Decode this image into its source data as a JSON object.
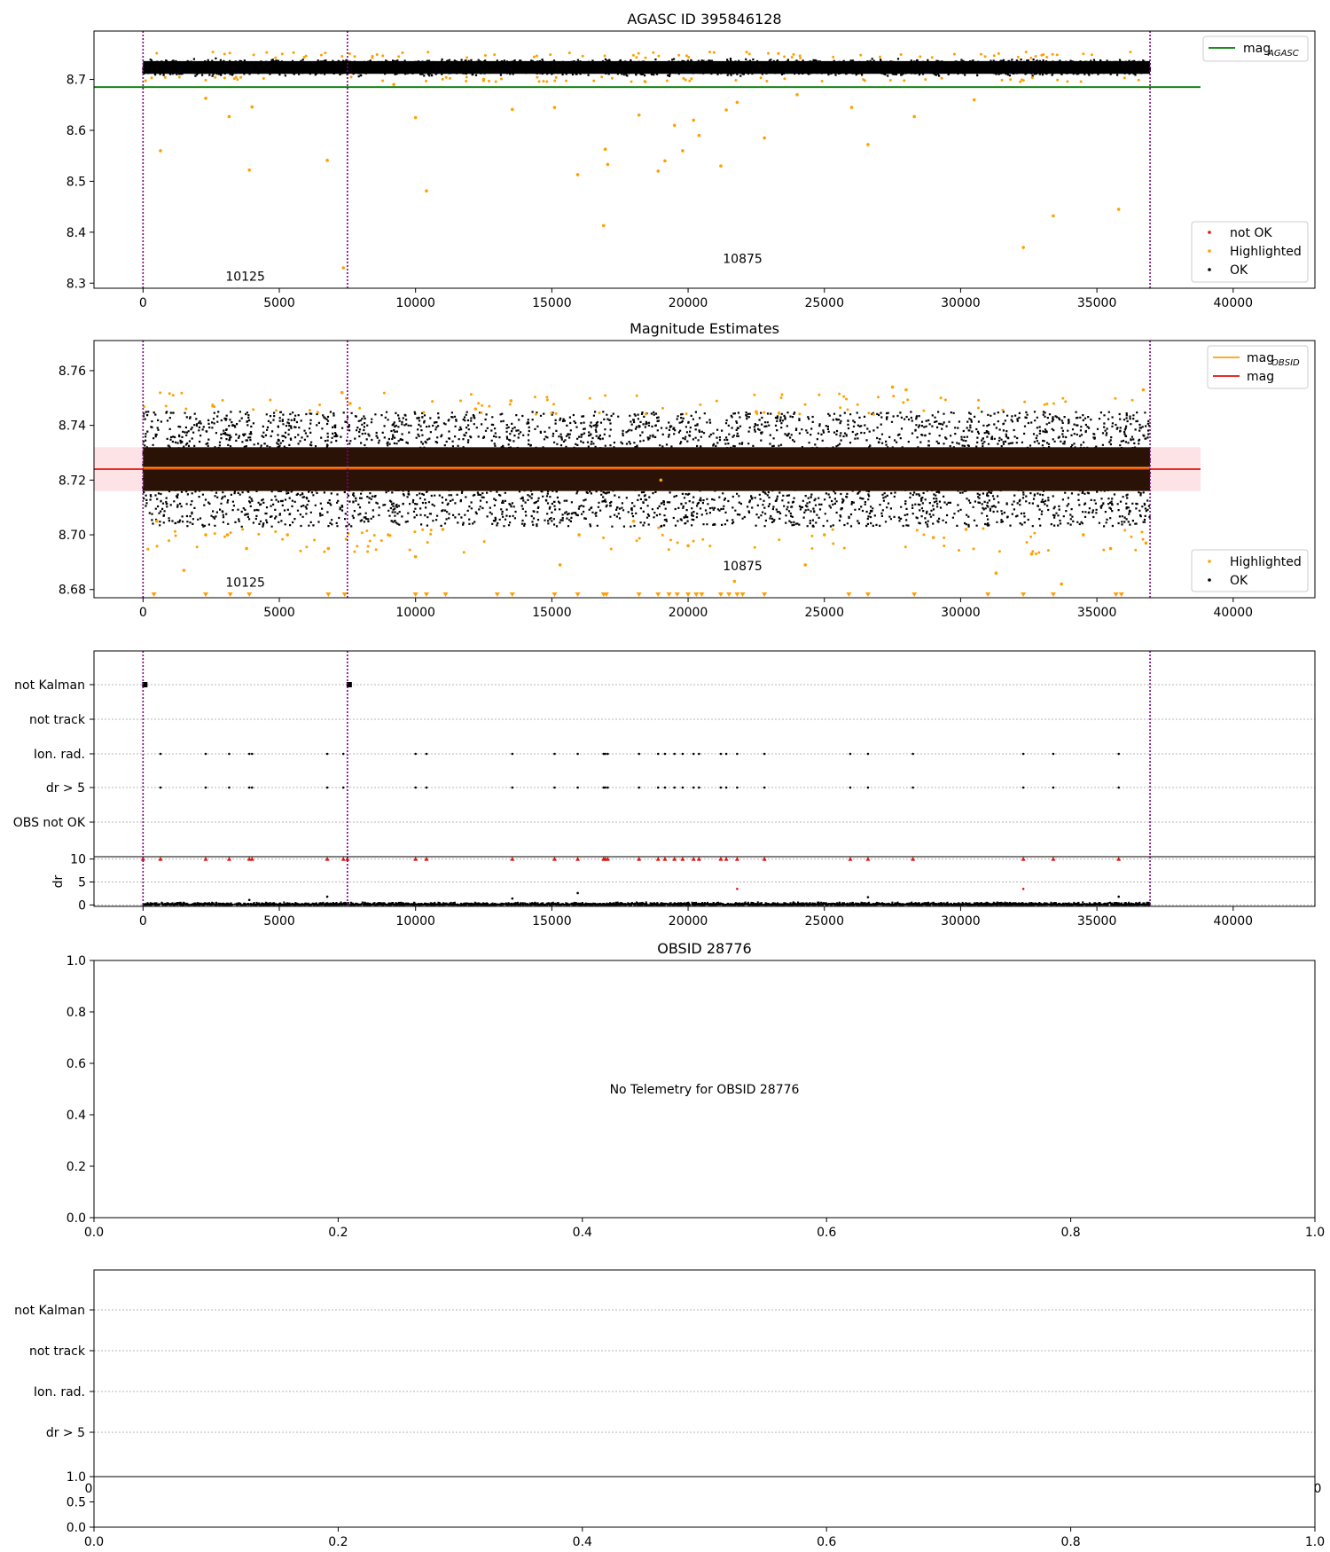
{
  "colors": {
    "agasc_line": "#007a00",
    "mag_line": "#e0110b",
    "obsid_line": "#ff9f0a",
    "band_fill": "#fde2e6",
    "highlighted": "#ffa000",
    "ok": "#000000",
    "not_ok": "#e0110b",
    "obs_boundary": "#7f007f",
    "grid": "#b5b5b5"
  },
  "chart_data": [
    {
      "id": "agasc",
      "type": "scatter",
      "title": "AGASC ID 395846128",
      "xlim": [
        -1800,
        43000
      ],
      "ylim": [
        8.29,
        8.795
      ],
      "xticks": [
        0,
        5000,
        10000,
        15000,
        20000,
        25000,
        30000,
        35000,
        40000
      ],
      "yticks": [
        8.3,
        8.4,
        8.5,
        8.6,
        8.7
      ],
      "ytick_labels": [
        "8.3",
        "8.4",
        "8.5",
        "8.6",
        "8.7"
      ],
      "mag_agasc": 8.685,
      "line_extent": [
        -1800,
        38800
      ],
      "obs_boundaries": [
        0,
        7500,
        36950
      ],
      "annotations": [
        {
          "text": "10125",
          "x": 3750,
          "y": 8.305
        },
        {
          "text": "10875",
          "x": 22000,
          "y": 8.34
        }
      ],
      "ok_band": {
        "x0": 0,
        "x1": 36950,
        "ylo": 8.705,
        "yhi": 8.742
      },
      "highlighted": [
        [
          640,
          8.56
        ],
        [
          2300,
          8.663
        ],
        [
          3160,
          8.627
        ],
        [
          3900,
          8.522
        ],
        [
          4000,
          8.646
        ],
        [
          6760,
          8.541
        ],
        [
          7350,
          8.33
        ],
        [
          10000,
          8.625
        ],
        [
          10400,
          8.481
        ],
        [
          13550,
          8.641
        ],
        [
          15100,
          8.645
        ],
        [
          15950,
          8.513
        ],
        [
          16900,
          8.413
        ],
        [
          16960,
          8.563
        ],
        [
          17050,
          8.533
        ],
        [
          18200,
          8.63
        ],
        [
          18900,
          8.52
        ],
        [
          19150,
          8.54
        ],
        [
          19500,
          8.61
        ],
        [
          19800,
          8.56
        ],
        [
          20200,
          8.62
        ],
        [
          20400,
          8.59
        ],
        [
          21200,
          8.53
        ],
        [
          21400,
          8.64
        ],
        [
          21800,
          8.655
        ],
        [
          22800,
          8.585
        ],
        [
          26600,
          8.572
        ],
        [
          28300,
          8.627
        ],
        [
          32300,
          8.37
        ],
        [
          33400,
          8.432
        ],
        [
          35800,
          8.445
        ],
        [
          24000,
          8.67
        ],
        [
          26000,
          8.645
        ],
        [
          9200,
          8.69
        ],
        [
          12500,
          8.7
        ],
        [
          30500,
          8.66
        ]
      ],
      "legend": [
        {
          "label": "mag",
          "sub": "AGASC",
          "kind": "line"
        }
      ],
      "legend2": [
        {
          "label": "not OK",
          "kind": "dot",
          "color_key": "not_ok"
        },
        {
          "label": "Highlighted",
          "kind": "dot",
          "color_key": "highlighted"
        },
        {
          "label": "OK",
          "kind": "dot",
          "color_key": "ok"
        }
      ]
    },
    {
      "id": "estimates",
      "type": "scatter",
      "title": "Magnitude Estimates",
      "xlim": [
        -1800,
        43000
      ],
      "ylim": [
        8.677,
        8.771
      ],
      "xticks": [
        0,
        5000,
        10000,
        15000,
        20000,
        25000,
        30000,
        35000,
        40000
      ],
      "yticks": [
        8.68,
        8.7,
        8.72,
        8.74,
        8.76
      ],
      "ytick_labels": [
        "8.68",
        "8.70",
        "8.72",
        "8.74",
        "8.76"
      ],
      "mag": 8.724,
      "mag_obsid": 8.7245,
      "band": [
        8.716,
        8.732
      ],
      "line_extent": [
        -1800,
        38800
      ],
      "obs_boundaries": [
        0,
        7500,
        36950
      ],
      "annotations": [
        {
          "text": "10125",
          "x": 3750,
          "y": 8.681
        },
        {
          "text": "10875",
          "x": 22000,
          "y": 8.687
        }
      ],
      "ok_band": {
        "x0": 0,
        "x1": 36950,
        "ylo": 8.716,
        "yhi": 8.732
      },
      "ok_spread": {
        "ylo": 8.703,
        "yhi": 8.745
      },
      "highlighted": [
        [
          500,
          8.705
        ],
        [
          1500,
          8.687
        ],
        [
          2300,
          8.7
        ],
        [
          3100,
          8.7
        ],
        [
          3800,
          8.695
        ],
        [
          5300,
          8.7
        ],
        [
          6800,
          8.695
        ],
        [
          7300,
          8.752
        ],
        [
          7600,
          8.748
        ],
        [
          9000,
          8.7
        ],
        [
          10000,
          8.692
        ],
        [
          11000,
          8.702
        ],
        [
          12200,
          8.746
        ],
        [
          13500,
          8.749
        ],
        [
          15300,
          8.689
        ],
        [
          16000,
          8.7
        ],
        [
          18000,
          8.705
        ],
        [
          19000,
          8.72
        ],
        [
          20000,
          8.696
        ],
        [
          21700,
          8.683
        ],
        [
          22500,
          8.745
        ],
        [
          24300,
          8.689
        ],
        [
          25000,
          8.7
        ],
        [
          27500,
          8.754
        ],
        [
          28000,
          8.753
        ],
        [
          29000,
          8.699
        ],
        [
          30200,
          8.702
        ],
        [
          31300,
          8.686
        ],
        [
          32600,
          8.693
        ],
        [
          33700,
          8.682
        ],
        [
          34500,
          8.7
        ],
        [
          35500,
          8.695
        ],
        [
          36700,
          8.753
        ],
        [
          36800,
          8.697
        ]
      ],
      "low_markers": [
        400,
        2300,
        3200,
        3900,
        6800,
        7400,
        10000,
        10400,
        11100,
        13000,
        13550,
        15100,
        15950,
        16900,
        17000,
        18200,
        18900,
        19300,
        19600,
        20000,
        20300,
        20500,
        21200,
        21500,
        21800,
        22000,
        22800,
        25900,
        26600,
        28300,
        31000,
        32300,
        33400,
        35700,
        35900
      ],
      "legend": [
        {
          "label": "mag",
          "sub": "OBSID",
          "kind": "line",
          "color_key": "obsid_line"
        },
        {
          "label": "mag",
          "sub": "",
          "kind": "line",
          "color_key": "mag_line"
        }
      ],
      "legend2": [
        {
          "label": "Highlighted",
          "kind": "dot",
          "color_key": "highlighted"
        },
        {
          "label": "OK",
          "kind": "dot",
          "color_key": "ok"
        }
      ]
    },
    {
      "id": "flags",
      "type": "scatter",
      "title": "",
      "xlim": [
        -1800,
        43000
      ],
      "categories": [
        "not Kalman",
        "not track",
        "Ion. rad.",
        "dr > 5",
        "OBS not OK"
      ],
      "obs_boundaries": [
        0,
        7500,
        36950
      ],
      "not_kalman_x": [
        0,
        7500
      ],
      "flag_x": [
        640,
        2300,
        3160,
        3900,
        4000,
        6760,
        7350,
        10000,
        10400,
        13550,
        15100,
        15950,
        16900,
        16960,
        17050,
        18200,
        18900,
        19150,
        19500,
        19800,
        20200,
        20400,
        21200,
        21400,
        21800,
        22800,
        25950,
        26600,
        28250,
        32300,
        33400,
        35800
      ]
    },
    {
      "id": "dr",
      "type": "scatter",
      "title": "",
      "xlim": [
        -1800,
        43000
      ],
      "ylim": [
        -0.3,
        10.5
      ],
      "ylabel": "dr",
      "xticks": [
        0,
        5000,
        10000,
        15000,
        20000,
        25000,
        30000,
        35000,
        40000
      ],
      "yticks": [
        0,
        5,
        10
      ],
      "ytick_labels": [
        "0",
        "5",
        "10"
      ],
      "obs_boundaries": [
        0,
        7500,
        36950
      ],
      "red_at_ten": [
        0,
        640,
        2300,
        3160,
        3900,
        4000,
        6760,
        7350,
        7500,
        10000,
        10400,
        13550,
        15100,
        15950,
        16900,
        16960,
        17050,
        18200,
        18900,
        19150,
        19500,
        19800,
        20200,
        20400,
        21200,
        21400,
        21800,
        22800,
        25950,
        26600,
        28250,
        32300,
        33400,
        35800
      ],
      "outliers": [
        [
          15950,
          2.6
        ],
        [
          21800,
          3.5
        ],
        [
          32300,
          3.5
        ],
        [
          6760,
          1.8
        ],
        [
          13550,
          1.4
        ],
        [
          26600,
          1.7
        ],
        [
          35800,
          1.8
        ],
        [
          3900,
          1.1
        ]
      ]
    },
    {
      "id": "obsid",
      "type": "scatter",
      "title": "OBSID 28776",
      "xlim": [
        0,
        1
      ],
      "ylim": [
        0,
        1
      ],
      "xticks": [
        0,
        0.2,
        0.4,
        0.6,
        0.8,
        1
      ],
      "xtick_labels": [
        "0.0",
        "0.2",
        "0.4",
        "0.6",
        "0.8",
        "1.0"
      ],
      "yticks": [
        0,
        0.2,
        0.4,
        0.6,
        0.8,
        1
      ],
      "ytick_labels": [
        "0.0",
        "0.2",
        "0.4",
        "0.6",
        "0.8",
        "1.0"
      ],
      "message": "No Telemetry for OBSID 28776"
    },
    {
      "id": "flags2",
      "type": "scatter",
      "title": "",
      "categories": [
        "not Kalman",
        "not track",
        "Ion. rad.",
        "dr > 5"
      ],
      "clipped_xtick_labels": [
        "0",
        "0"
      ]
    },
    {
      "id": "dr2",
      "type": "scatter",
      "title": "",
      "xlim": [
        0,
        1
      ],
      "ylim": [
        0,
        1
      ],
      "xticks": [
        0,
        0.2,
        0.4,
        0.6,
        0.8,
        1
      ],
      "xtick_labels": [
        "0.0",
        "0.2",
        "0.4",
        "0.6",
        "0.8",
        "1.0"
      ],
      "yticks": [
        0,
        0.5,
        1
      ],
      "ytick_labels": [
        "0.0",
        "0.5",
        "1.0"
      ]
    }
  ]
}
